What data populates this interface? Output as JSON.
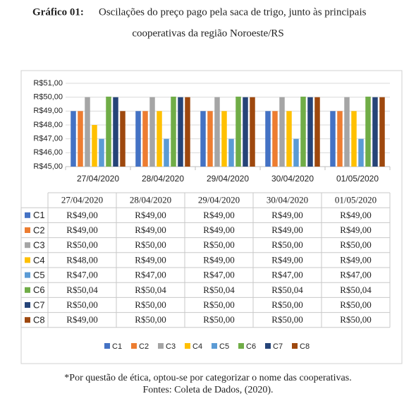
{
  "chart_data": {
    "type": "bar",
    "title_prefix": "Gráfico 01:",
    "title_lines": [
      "Oscilações do preço pago pela saca de trigo, junto às principais",
      "cooperativas da região Noroeste/RS"
    ],
    "categories": [
      "27/04/2020",
      "28/04/2020",
      "29/04/2020",
      "30/04/2020",
      "01/05/2020"
    ],
    "series": [
      {
        "name": "C1",
        "color": "#4472c4",
        "values": [
          49,
          49,
          49,
          49,
          49
        ],
        "value_labels": [
          "R$49,00",
          "R$49,00",
          "R$49,00",
          "R$49,00",
          "R$49,00"
        ]
      },
      {
        "name": "C2",
        "color": "#ed7d31",
        "values": [
          49,
          49,
          49,
          49,
          49
        ],
        "value_labels": [
          "R$49,00",
          "R$49,00",
          "R$49,00",
          "R$49,00",
          "R$49,00"
        ]
      },
      {
        "name": "C3",
        "color": "#a5a5a5",
        "values": [
          50,
          50,
          50,
          50,
          50
        ],
        "value_labels": [
          "R$50,00",
          "R$50,00",
          "R$50,00",
          "R$50,00",
          "R$50,00"
        ]
      },
      {
        "name": "C4",
        "color": "#ffc000",
        "values": [
          48,
          49,
          49,
          49,
          49
        ],
        "value_labels": [
          "R$48,00",
          "R$49,00",
          "R$49,00",
          "R$49,00",
          "R$49,00"
        ]
      },
      {
        "name": "C5",
        "color": "#5b9bd5",
        "values": [
          47,
          47,
          47,
          47,
          47
        ],
        "value_labels": [
          "R$47,00",
          "R$47,00",
          "R$47,00",
          "R$47,00",
          "R$47,00"
        ]
      },
      {
        "name": "C6",
        "color": "#70ad47",
        "values": [
          50.04,
          50.04,
          50.04,
          50.04,
          50.04
        ],
        "value_labels": [
          "R$50,04",
          "R$50,04",
          "R$50,04",
          "R$50,04",
          "R$50,04"
        ]
      },
      {
        "name": "C7",
        "color": "#264478",
        "values": [
          50,
          50,
          50,
          50,
          50
        ],
        "value_labels": [
          "R$50,00",
          "R$50,00",
          "R$50,00",
          "R$50,00",
          "R$50,00"
        ]
      },
      {
        "name": "C8",
        "color": "#9e480e",
        "values": [
          49,
          50,
          50,
          50,
          50
        ],
        "value_labels": [
          "R$49,00",
          "R$50,00",
          "R$50,00",
          "R$50,00",
          "R$50,00"
        ]
      }
    ],
    "ylim": [
      45,
      51
    ],
    "yticks": [
      {
        "value": 45,
        "label": "R$45,00"
      },
      {
        "value": 46,
        "label": "R$46,00"
      },
      {
        "value": 47,
        "label": "R$47,00"
      },
      {
        "value": 48,
        "label": "R$48,00"
      },
      {
        "value": 49,
        "label": "R$49,00"
      },
      {
        "value": 50,
        "label": "R$50,00"
      },
      {
        "value": 51,
        "label": "R$51,00"
      }
    ],
    "grid": true,
    "footnotes": [
      "*Por questão de ética, optou-se por categorizar o nome das cooperativas.",
      "Fontes: Coleta de Dados, (2020)."
    ]
  }
}
